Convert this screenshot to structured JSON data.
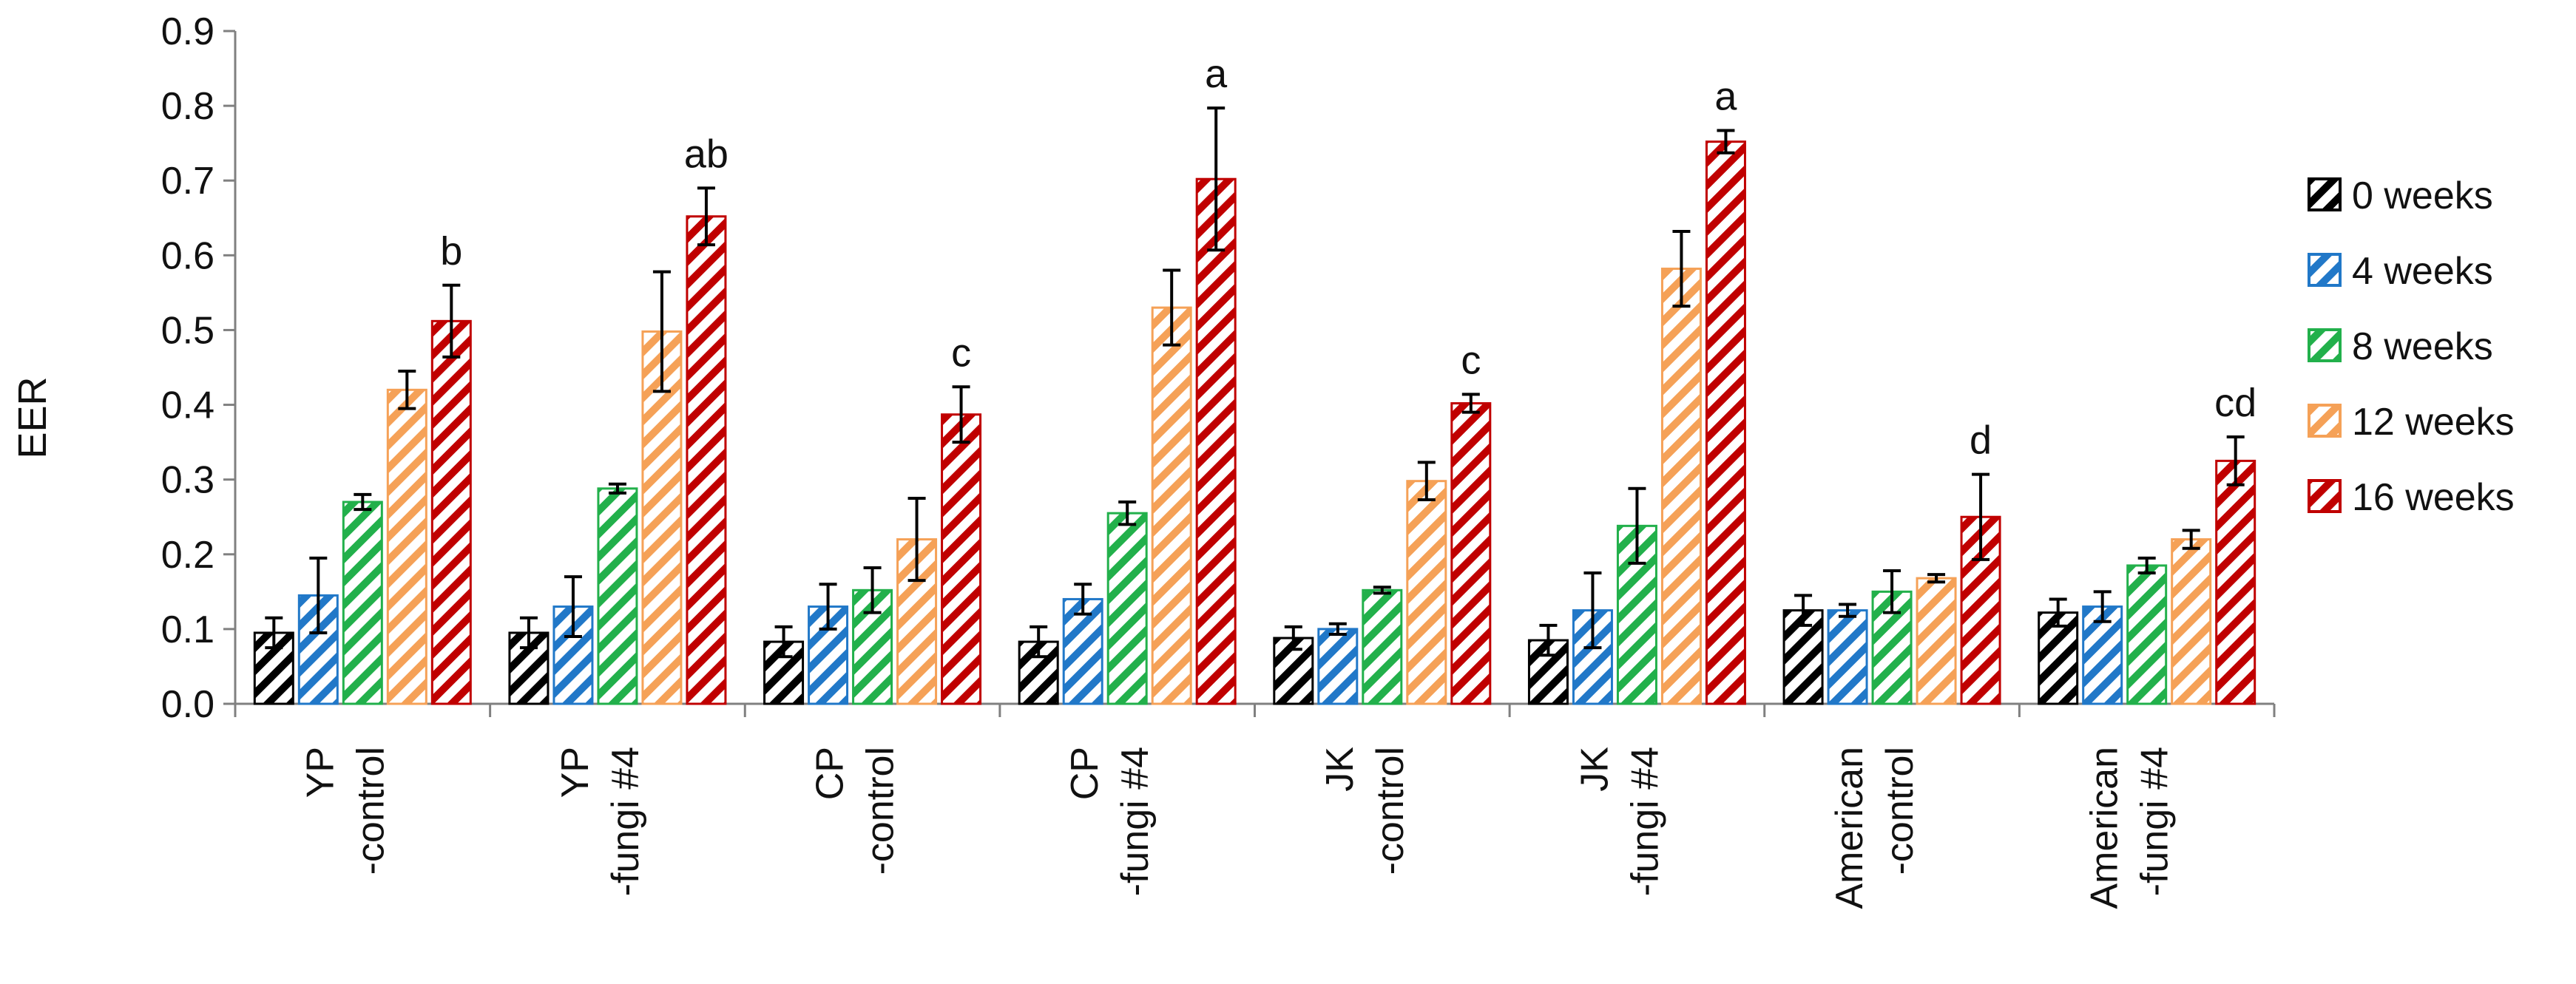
{
  "chart_data": {
    "type": "bar",
    "ylabel": "EER",
    "ylim": [
      0,
      0.9
    ],
    "yticks": [
      "0.0",
      "0.1",
      "0.2",
      "0.3",
      "0.4",
      "0.5",
      "0.6",
      "0.7",
      "0.8",
      "0.9"
    ],
    "categories": [
      [
        "YP",
        "-control"
      ],
      [
        "YP",
        "-fungi #4"
      ],
      [
        "CP",
        "-control"
      ],
      [
        "CP",
        "-fungi #4"
      ],
      [
        "JK",
        "-control"
      ],
      [
        "JK",
        "-fungi #4"
      ],
      [
        "American",
        "-control"
      ],
      [
        "American",
        "-fungi #4"
      ]
    ],
    "series": [
      {
        "name": "0 weeks",
        "color": "#000000",
        "values": [
          0.095,
          0.095,
          0.083,
          0.083,
          0.088,
          0.085,
          0.125,
          0.122
        ],
        "errors": [
          0.02,
          0.02,
          0.02,
          0.02,
          0.015,
          0.02,
          0.02,
          0.018
        ]
      },
      {
        "name": "4 weeks",
        "color": "#2178c8",
        "values": [
          0.145,
          0.13,
          0.13,
          0.14,
          0.1,
          0.125,
          0.125,
          0.13
        ],
        "errors": [
          0.05,
          0.04,
          0.03,
          0.02,
          0.007,
          0.05,
          0.008,
          0.02
        ]
      },
      {
        "name": "8 weeks",
        "color": "#22b04b",
        "values": [
          0.27,
          0.288,
          0.152,
          0.255,
          0.152,
          0.238,
          0.15,
          0.185
        ],
        "errors": [
          0.01,
          0.006,
          0.03,
          0.015,
          0.004,
          0.05,
          0.028,
          0.01
        ]
      },
      {
        "name": "12 weeks",
        "color": "#f5a157",
        "values": [
          0.42,
          0.498,
          0.22,
          0.53,
          0.298,
          0.582,
          0.168,
          0.22
        ],
        "errors": [
          0.025,
          0.08,
          0.055,
          0.05,
          0.025,
          0.05,
          0.005,
          0.012
        ]
      },
      {
        "name": "16 weeks",
        "color": "#c00000",
        "values": [
          0.512,
          0.652,
          0.387,
          0.702,
          0.402,
          0.752,
          0.25,
          0.325
        ],
        "errors": [
          0.048,
          0.038,
          0.037,
          0.095,
          0.012,
          0.015,
          0.057,
          0.032
        ]
      }
    ],
    "significance_letters": [
      "b",
      "ab",
      "c",
      "a",
      "c",
      "a",
      "d",
      "cd"
    ],
    "legend": "right"
  }
}
